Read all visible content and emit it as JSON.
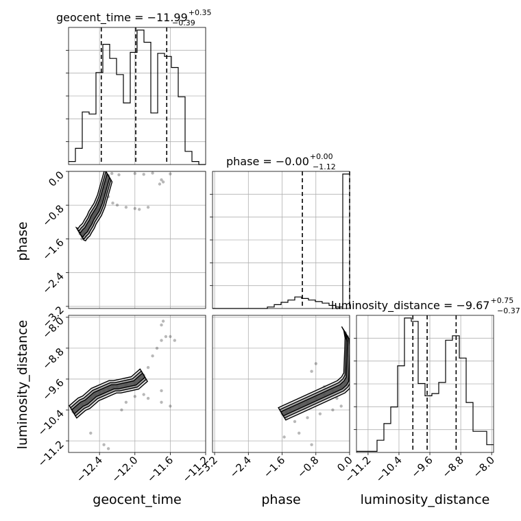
{
  "chart_data": {
    "type": "corner",
    "parameters": [
      "geocent_time",
      "phase",
      "luminosity_distance"
    ],
    "titles": [
      {
        "param": "geocent_time",
        "label": "geocent_time = −11.99",
        "plus": "+0.35",
        "minus": "−0.39"
      },
      {
        "param": "phase",
        "label": "phase = −0.00",
        "plus": "+0.00",
        "minus": "−1.12"
      },
      {
        "param": "luminosity_distance",
        "label": "luminosity_distance = −9.67",
        "plus": "+0.75",
        "minus": "−0.37"
      }
    ],
    "axes": {
      "geocent_time": {
        "range": [
          -12.75,
          -11.2
        ],
        "ticks": [
          -12.4,
          -12.0,
          -11.6,
          -11.2
        ],
        "tick_labels": [
          "−12.4",
          "−12.0",
          "−11.6",
          "−11.2"
        ]
      },
      "phase": {
        "range": [
          -3.25,
          0.0
        ],
        "ticks": [
          -3.2,
          -2.4,
          -1.6,
          -0.8,
          0.0
        ],
        "tick_labels": [
          "−3.2",
          "−2.4",
          "−1.6",
          "−0.8",
          "0.0"
        ]
      },
      "luminosity_distance": {
        "range": [
          -11.5,
          -7.95
        ],
        "ticks": [
          -11.2,
          -10.4,
          -9.6,
          -8.8,
          -8.0
        ],
        "tick_labels": [
          "−11.2",
          "−10.4",
          "−9.6",
          "−8.8",
          "−8.0"
        ]
      }
    },
    "histograms": {
      "geocent_time": {
        "bin_edges": [
          -12.75,
          -12.6725,
          -12.595,
          -12.5175,
          -12.44,
          -12.3625,
          -12.285,
          -12.2075,
          -12.13,
          -12.0525,
          -11.975,
          -11.8975,
          -11.82,
          -11.7425,
          -11.665,
          -11.5875,
          -11.51,
          -11.4325,
          -11.355,
          -11.2775,
          -11.2
        ],
        "counts": [
          0.3,
          1.6,
          5.2,
          5.0,
          9.1,
          11.9,
          10.5,
          8.9,
          6.1,
          11.1,
          13.3,
          12.1,
          5.1,
          11.0,
          10.7,
          9.6,
          6.7,
          1.3,
          0.3,
          0.0
        ],
        "quantiles": [
          -12.38,
          -11.99,
          -11.64
        ]
      },
      "phase": {
        "bin_edges": [
          -3.25,
          -3.0875,
          -2.925,
          -2.7625,
          -2.6,
          -2.4375,
          -2.275,
          -2.1125,
          -1.95,
          -1.7875,
          -1.625,
          -1.4625,
          -1.3,
          -1.1375,
          -0.975,
          -0.8125,
          -0.65,
          -0.4875,
          -0.325,
          -0.1625,
          0.0
        ],
        "counts": [
          0,
          0,
          0,
          0,
          0,
          0,
          0,
          0,
          0.2,
          0.5,
          0.8,
          1.1,
          1.5,
          1.3,
          1.1,
          0.9,
          0.7,
          0.4,
          0.2,
          17.5
        ],
        "quantiles": [
          -1.12,
          -0.0
        ]
      },
      "luminosity_distance": {
        "bin_edges": [
          -11.5,
          -11.3225,
          -11.145,
          -10.9675,
          -10.79,
          -10.6125,
          -10.435,
          -10.2575,
          -10.08,
          -9.9025,
          -9.725,
          -9.5475,
          -9.37,
          -9.1925,
          -9.015,
          -8.8375,
          -8.66,
          -8.4825,
          -8.305,
          -8.1275,
          -7.95
        ],
        "counts": [
          0.1,
          0.1,
          0.1,
          1.1,
          2.6,
          4.1,
          7.8,
          12.1,
          11.8,
          6.2,
          5.1,
          5.3,
          6.3,
          10.1,
          10.5,
          8.5,
          4.5,
          1.9,
          1.9,
          0.7
        ],
        "quantiles": [
          -10.04,
          -9.67,
          -8.92
        ]
      }
    },
    "scatter_2d": [
      {
        "x_param": "geocent_time",
        "y_param": "phase",
        "points": [
          [
            -12.62,
            -1.48
          ],
          [
            -12.6,
            -1.5
          ],
          [
            -12.58,
            -1.44
          ],
          [
            -12.55,
            -1.38
          ],
          [
            -12.53,
            -1.3
          ],
          [
            -12.5,
            -1.2
          ],
          [
            -12.48,
            -1.1
          ],
          [
            -12.45,
            -1.0
          ],
          [
            -12.42,
            -0.9
          ],
          [
            -12.4,
            -0.8
          ],
          [
            -12.38,
            -0.7
          ],
          [
            -12.36,
            -0.55
          ],
          [
            -12.34,
            -0.4
          ],
          [
            -12.32,
            -0.25
          ],
          [
            -12.3,
            -0.1
          ],
          [
            -12.55,
            -1.55
          ],
          [
            -12.52,
            -1.45
          ],
          [
            -12.47,
            -1.05
          ],
          [
            -12.44,
            -0.95
          ],
          [
            -12.35,
            -0.3
          ],
          [
            -12.3,
            -0.6
          ],
          [
            -12.25,
            -0.75
          ],
          [
            -12.2,
            -0.8
          ],
          [
            -12.1,
            -0.85
          ],
          [
            -12.0,
            -0.88
          ],
          [
            -11.95,
            -0.9
          ],
          [
            -11.85,
            -0.85
          ],
          [
            -11.72,
            -0.3
          ],
          [
            -11.7,
            -0.2
          ],
          [
            -11.68,
            -0.25
          ],
          [
            -12.6,
            -1.6
          ],
          [
            -12.5,
            -1.25
          ],
          [
            -12.33,
            -0.5
          ],
          [
            -12.26,
            -0.05
          ],
          [
            -12.18,
            -0.08
          ],
          [
            -12.0,
            -0.05
          ],
          [
            -11.9,
            -0.07
          ],
          [
            -11.8,
            -0.04
          ],
          [
            -11.6,
            -0.06
          ]
        ],
        "contour_levels": 3
      },
      {
        "x_param": "geocent_time",
        "y_param": "luminosity_distance",
        "points": [
          [
            -12.7,
            -10.45
          ],
          [
            -12.65,
            -10.35
          ],
          [
            -12.6,
            -10.25
          ],
          [
            -12.55,
            -10.2
          ],
          [
            -12.5,
            -10.1
          ],
          [
            -12.45,
            -10.0
          ],
          [
            -12.4,
            -9.95
          ],
          [
            -12.35,
            -9.9
          ],
          [
            -12.3,
            -9.85
          ],
          [
            -12.25,
            -9.8
          ],
          [
            -12.2,
            -9.8
          ],
          [
            -12.1,
            -9.75
          ],
          [
            -12.0,
            -9.7
          ],
          [
            -11.95,
            -9.6
          ],
          [
            -11.9,
            -9.5
          ],
          [
            -11.85,
            -9.3
          ],
          [
            -11.8,
            -9.0
          ],
          [
            -11.75,
            -8.8
          ],
          [
            -11.7,
            -8.6
          ],
          [
            -11.65,
            -8.5
          ],
          [
            -11.6,
            -8.5
          ],
          [
            -11.55,
            -8.6
          ],
          [
            -11.68,
            -8.1
          ],
          [
            -11.7,
            -8.2
          ],
          [
            -12.1,
            -10.2
          ],
          [
            -12.15,
            -10.4
          ],
          [
            -11.9,
            -10.0
          ],
          [
            -11.85,
            -10.1
          ],
          [
            -11.7,
            -10.2
          ],
          [
            -11.6,
            -10.3
          ],
          [
            -12.3,
            -11.4
          ],
          [
            -12.35,
            -11.3
          ],
          [
            -12.5,
            -11.0
          ],
          [
            -11.7,
            -9.9
          ],
          [
            -12.0,
            -10.05
          ]
        ],
        "contour_levels": 3
      },
      {
        "x_param": "phase",
        "y_param": "luminosity_distance",
        "points": [
          [
            -1.6,
            -10.5
          ],
          [
            -1.5,
            -10.45
          ],
          [
            -1.4,
            -10.4
          ],
          [
            -1.2,
            -10.3
          ],
          [
            -1.0,
            -10.2
          ],
          [
            -0.8,
            -10.1
          ],
          [
            -0.6,
            -10.0
          ],
          [
            -0.4,
            -9.9
          ],
          [
            -0.2,
            -9.8
          ],
          [
            -0.1,
            -9.7
          ],
          [
            -0.05,
            -9.6
          ],
          [
            -0.03,
            -9.0
          ],
          [
            -0.02,
            -8.7
          ],
          [
            -0.05,
            -8.5
          ],
          [
            -0.1,
            -8.4
          ],
          [
            -1.3,
            -10.7
          ],
          [
            -1.0,
            -10.6
          ],
          [
            -0.7,
            -10.5
          ],
          [
            -0.4,
            -10.4
          ],
          [
            -0.2,
            -10.3
          ],
          [
            -1.5,
            -10.6
          ],
          [
            -0.9,
            -9.4
          ],
          [
            -0.8,
            -9.2
          ],
          [
            -0.6,
            -9.8
          ],
          [
            -1.55,
            -11.1
          ],
          [
            -1.2,
            -11.0
          ],
          [
            -0.9,
            -11.3
          ],
          [
            -0.3,
            -10.1
          ]
        ],
        "contour_levels": 3
      }
    ]
  }
}
